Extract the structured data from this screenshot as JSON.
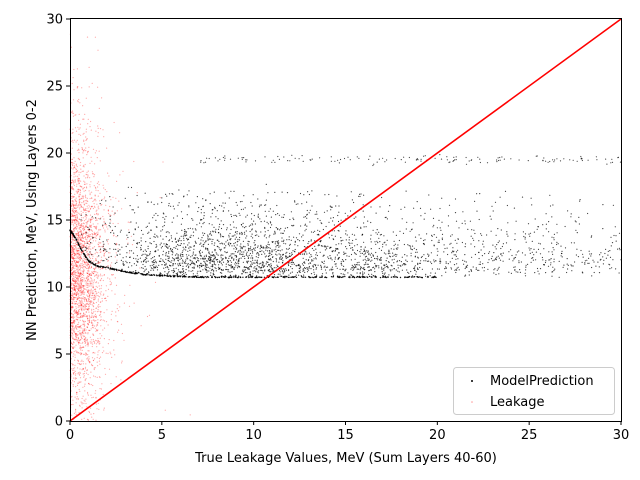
{
  "chart_data": {
    "type": "scatter",
    "title": "",
    "xlabel": "True Leakage Values, MeV (Sum Layers 40-60)",
    "ylabel": "NN Prediction, MeV, Using Layers 0-2",
    "xlim": [
      0,
      30
    ],
    "ylim": [
      0,
      30
    ],
    "xticks": [
      0,
      5,
      10,
      15,
      20,
      25,
      30
    ],
    "yticks": [
      0,
      5,
      10,
      15,
      20,
      25,
      30
    ],
    "grid": false,
    "legend_position": "lower-right",
    "series": [
      {
        "name": "ModelPrediction",
        "color": "#000000",
        "marker": "dot",
        "description_points": {
          "floor_curve": [
            [
              0.0,
              14.2
            ],
            [
              0.3,
              13.6
            ],
            [
              0.6,
              12.8
            ],
            [
              1.0,
              11.9
            ],
            [
              1.5,
              11.5
            ],
            [
              2.0,
              11.4
            ],
            [
              3.0,
              11.1
            ],
            [
              4.0,
              10.9
            ],
            [
              5.0,
              10.8
            ],
            [
              7.0,
              10.7
            ],
            [
              10.0,
              10.7
            ],
            [
              15.0,
              10.7
            ],
            [
              20.0,
              10.7
            ]
          ],
          "cloud_x_range": [
            0.5,
            30
          ],
          "cloud_y_range": [
            10.5,
            17.5
          ],
          "cloud_center_y": 12.5,
          "upper_band_y": 19.5
        }
      },
      {
        "name": "Leakage",
        "color": "#ff0000",
        "marker": "dot",
        "description_points": {
          "x_range": [
            0,
            3.5
          ],
          "y_range": [
            2,
            30
          ],
          "center_y": 11
        }
      },
      {
        "name": "y=x",
        "color": "#ff0000",
        "marker": "line",
        "x": [
          0,
          30
        ],
        "y": [
          0,
          30
        ]
      }
    ]
  }
}
